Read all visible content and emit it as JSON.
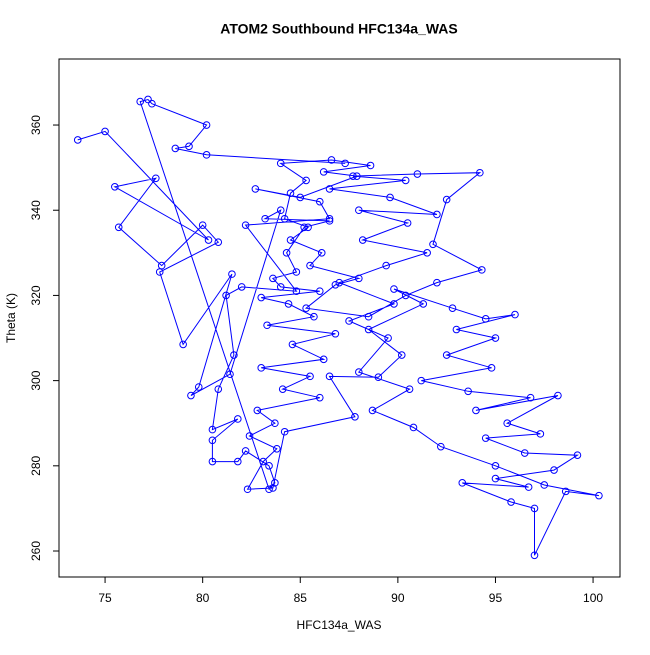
{
  "chart_data": {
    "type": "line",
    "markers": true,
    "title": "ATOM2 Southbound HFC134a_WAS",
    "x_label": "HFC134a_WAS",
    "y_label": "Theta (K)",
    "color": "#0000ff",
    "xlim": [
      72.64,
      101.38
    ],
    "ylim": [
      253.9,
      375.5
    ],
    "xticks": [
      75,
      80,
      85,
      90,
      95,
      100
    ],
    "yticks": [
      260,
      280,
      300,
      320,
      340,
      360
    ],
    "x": [
      73.6,
      75,
      80.3,
      75.5,
      77.6,
      75.7,
      77.9,
      80,
      80.8,
      77.8,
      79,
      81.5,
      79.8,
      79.4,
      81.4,
      84,
      83.2,
      86.5,
      85.2,
      84.3,
      84.8,
      83.6,
      84,
      86,
      83,
      84.4,
      85.7,
      83.3,
      86.8,
      84.6,
      86.2,
      83,
      85.5,
      84.1,
      86,
      82.8,
      83.7,
      82.4,
      83.8,
      83.1,
      82.3,
      83.6,
      84.2,
      87.8,
      86.5,
      89,
      90.2,
      88.5,
      91.3,
      89.8,
      92.8,
      94.5,
      96,
      93,
      95,
      92.5,
      94.8,
      91.2,
      93.6,
      96.8,
      94,
      98.2,
      95.6,
      97.3,
      94.5,
      96.5,
      99.2,
      98,
      95,
      96.7,
      93.3,
      95.8,
      97,
      97,
      98.6,
      100.3,
      97.5,
      95,
      92.2,
      90.8,
      88.7,
      90.6,
      88,
      89.5,
      87.5,
      89.8,
      87,
      89.4,
      91.5,
      88.2,
      90.5,
      88,
      92,
      89.6,
      86.5,
      90.4,
      87.7,
      91,
      94.2,
      92.5,
      91.8,
      94.3,
      92,
      90.4,
      88.5,
      85.3,
      86.8,
      88,
      85.5,
      86.1,
      84.5,
      85.4,
      84.2,
      84.5,
      85.3,
      84,
      86.6,
      88.6,
      86.2,
      87.9,
      85,
      82.7,
      86,
      86.5,
      82.2,
      84.8,
      82,
      81.2,
      81.6,
      80.8,
      80.5,
      81.8,
      80.5,
      80.5,
      81.8,
      82.2,
      83.4,
      83.7,
      83.4,
      76.8,
      77.2,
      77.4,
      80.2,
      79.3,
      78.6,
      80.2,
      87.3
    ],
    "values": [
      356.5,
      358.5,
      333,
      345.5,
      347.5,
      336,
      327,
      336.5,
      332.5,
      325.5,
      308.5,
      325,
      298.5,
      296.5,
      301.5,
      340,
      338,
      337.5,
      336,
      330,
      325.5,
      324,
      322,
      321,
      319.5,
      318,
      315,
      313,
      311,
      308.5,
      305,
      303,
      301,
      298,
      296,
      293,
      290,
      287,
      284,
      281,
      274.5,
      274.8,
      288,
      291.5,
      301,
      300.8,
      306,
      312,
      318,
      321.5,
      317,
      314.5,
      315.5,
      312,
      310,
      306,
      303,
      300,
      297.5,
      296,
      293,
      296.5,
      290,
      287.5,
      286.5,
      283,
      282.5,
      279,
      277,
      275,
      276,
      271.5,
      270,
      259,
      274,
      273,
      275.5,
      280,
      284.5,
      289,
      293,
      298,
      302,
      310,
      314,
      318,
      323,
      327,
      330,
      333,
      337,
      340,
      339,
      343,
      345,
      347,
      348,
      348.5,
      348.8,
      342.5,
      332,
      326,
      323,
      320,
      315,
      317,
      322.5,
      324,
      327,
      330,
      333,
      336,
      338,
      344,
      347,
      351,
      351.8,
      350.5,
      349,
      348,
      343,
      345,
      342,
      338,
      336.5,
      321,
      322,
      320,
      306,
      298,
      288.5,
      291,
      286,
      281,
      281,
      283.5,
      280,
      276,
      274.5,
      365.5,
      366,
      365,
      360,
      355,
      354.5,
      353,
      351
    ]
  }
}
